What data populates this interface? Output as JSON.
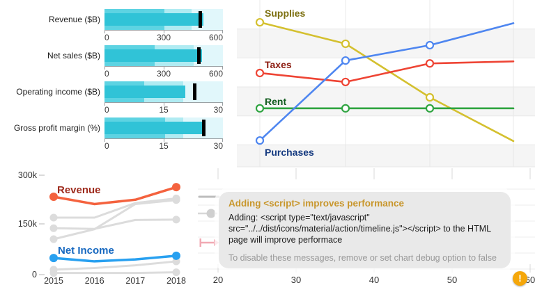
{
  "chart_data": [
    {
      "id": "bullets",
      "type": "bullet",
      "bar_color": "#30c3d7",
      "range_colors": [
        "#5dd3e2",
        "#b0ebf2",
        "#e1f7fb"
      ],
      "target_color": "#000000",
      "items": [
        {
          "label": "Revenue ($B)",
          "max": 600,
          "ticks": [
            "0",
            "300",
            "600"
          ],
          "range1": 305,
          "range2": 440,
          "value": 500,
          "target": 485
        },
        {
          "label": "Net sales ($B)",
          "max": 600,
          "ticks": [
            "0",
            "300",
            "600"
          ],
          "range1": 255,
          "range2": 450,
          "value": 495,
          "target": 478
        },
        {
          "label": "Operating income ($B)",
          "max": 30,
          "ticks": [
            "0",
            "15",
            "30"
          ],
          "range1": 10,
          "range2": 20,
          "value": 20.4,
          "target": 22.7
        },
        {
          "label": "Gross profit margin (%)",
          "max": 30,
          "ticks": [
            "0",
            "15",
            "30"
          ],
          "range1": 15.4,
          "range2": 20,
          "value": 24.8,
          "target": 25
        }
      ]
    },
    {
      "id": "expenses",
      "type": "line",
      "x": [
        1,
        2,
        3,
        4
      ],
      "ylim": [
        0,
        5.76
      ],
      "grid": true,
      "series": [
        {
          "name": "Supplies",
          "values": [
            4.99,
            4.25,
            2.4,
            0.89
          ],
          "color": "#d4c02f",
          "label_color": "#7d7011"
        },
        {
          "name": "Taxes",
          "values": [
            3.24,
            2.93,
            3.57,
            3.64
          ],
          "color": "#ee4434",
          "label_color": "#8c1c10"
        },
        {
          "name": "Rent",
          "values": [
            2.02,
            2.02,
            2.02,
            2.02
          ],
          "color": "#2ea440",
          "label_color": "#115c1e"
        },
        {
          "name": "Purchases",
          "values": [
            0.91,
            3.67,
            4.2,
            4.96
          ],
          "color": "#4e86f0",
          "label_color": "#153a80"
        }
      ]
    },
    {
      "id": "sales",
      "type": "line",
      "categories": [
        "2015",
        "2016",
        "2017",
        "2018"
      ],
      "y_ticks": [
        "300k",
        "150k",
        "0"
      ],
      "ylim": [
        0,
        300000
      ],
      "grid": false,
      "series": [
        {
          "name": "Revenue",
          "values": [
            235000,
            213000,
            226000,
            264000
          ],
          "color": "#f4623e",
          "label_color": "#9e2b1d"
        },
        {
          "name": "Net Income",
          "values": [
            50000,
            40000,
            46000,
            57000
          ],
          "color": "#28a0f0",
          "label_color": "#1668c0"
        },
        {
          "name": "",
          "values": [
            172000,
            172000,
            216000,
            230000
          ],
          "color": "#dcdcdc"
        },
        {
          "name": "",
          "values": [
            107000,
            137000,
            213000,
            225000
          ],
          "color": "#dcdcdc"
        },
        {
          "name": "",
          "values": [
            140000,
            138000,
            165000,
            166000
          ],
          "color": "#dcdcdc"
        },
        {
          "name": "",
          "values": [
            15000,
            20000,
            28000,
            40000
          ],
          "color": "#dcdcdc"
        },
        {
          "name": "",
          "values": [
            5000,
            5000,
            5000,
            7000
          ],
          "color": "#dcdcdc"
        }
      ]
    },
    {
      "id": "debug",
      "type": "line",
      "x_ticks": [
        "20",
        "30",
        "40",
        "50",
        "60"
      ],
      "tooltip": {
        "title": "Adding <script> improves performance",
        "body_lines": [
          "Adding: <script type=\"text/javascript\"",
          "src=\"../../dist/icons/material/action/timeline.js\"></script> to the HTML",
          "page will improve performace"
        ],
        "footer": "To disable these messages, remove or set chart debug option to false"
      },
      "warning_icon_text": "!"
    }
  ]
}
